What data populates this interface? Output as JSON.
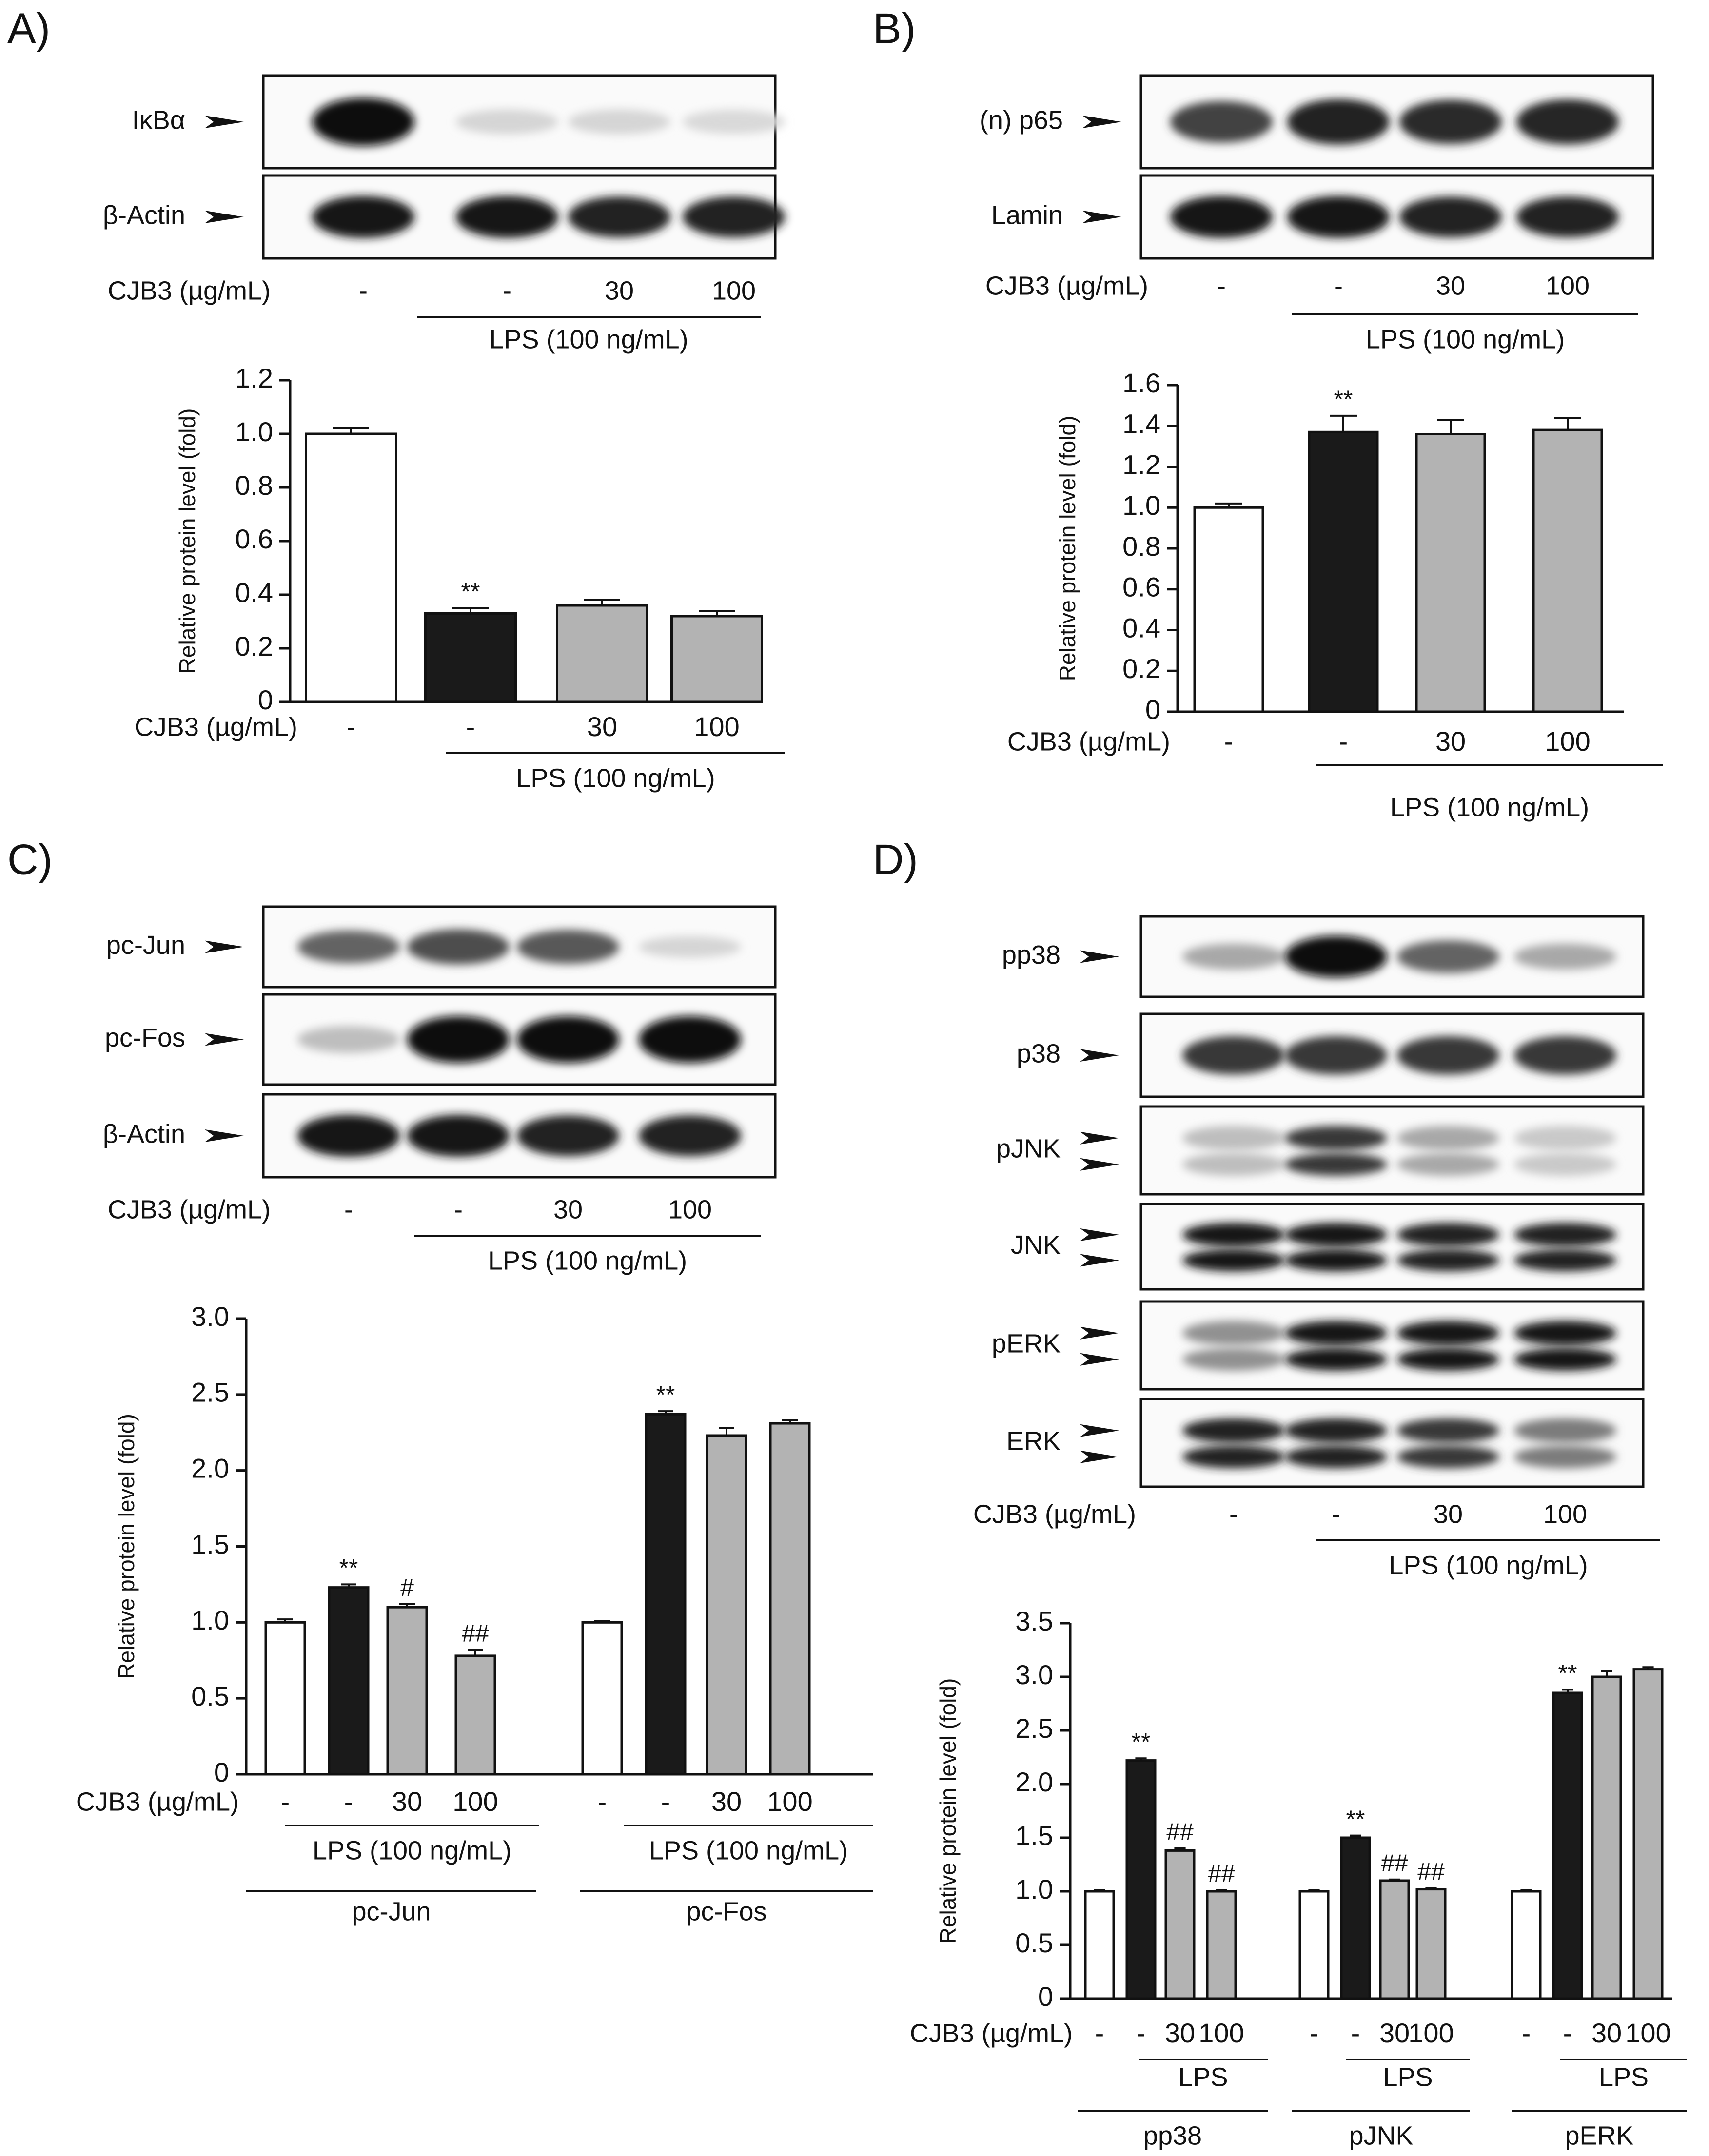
{
  "panels": {
    "A": {
      "letter": "A)",
      "blot": {
        "rows": [
          {
            "label": "IκBα",
            "band_intensity": [
              1.0,
              0.1,
              0.1,
              0.08
            ]
          },
          {
            "label": "β-Actin",
            "band_intensity": [
              0.95,
              0.95,
              0.9,
              0.9
            ]
          }
        ],
        "treatment_label": "CJB3 (µg/mL)",
        "doses": [
          "-",
          "-",
          "30",
          "100"
        ],
        "lps_label": "LPS (100 ng/mL)"
      }
    },
    "B": {
      "letter": "B)",
      "blot": {
        "rows": [
          {
            "label": "(n) p65",
            "band_intensity": [
              0.75,
              0.9,
              0.85,
              0.88
            ]
          },
          {
            "label": "Lamin",
            "band_intensity": [
              0.95,
              0.95,
              0.9,
              0.9
            ]
          }
        ],
        "treatment_label": "CJB3 (µg/mL)",
        "doses": [
          "-",
          "-",
          "30",
          "100"
        ],
        "lps_label": "LPS (100 ng/mL)"
      }
    },
    "C": {
      "letter": "C)",
      "blot": {
        "rows": [
          {
            "label": "pc-Jun",
            "band_intensity": [
              0.6,
              0.7,
              0.65,
              0.1
            ]
          },
          {
            "label": "pc-Fos",
            "band_intensity": [
              0.2,
              1.0,
              1.0,
              1.0
            ]
          },
          {
            "label": "β-Actin",
            "band_intensity": [
              0.95,
              0.95,
              0.9,
              0.9
            ]
          }
        ],
        "treatment_label": "CJB3 (µg/mL)",
        "doses": [
          "-",
          "-",
          "30",
          "100"
        ],
        "lps_label": "LPS (100 ng/mL)"
      }
    },
    "D": {
      "letter": "D)",
      "blot": {
        "rows": [
          {
            "label": "pp38",
            "band_intensity": [
              0.3,
              1.0,
              0.6,
              0.3
            ],
            "arrows": 1
          },
          {
            "label": "p38",
            "band_intensity": [
              0.8,
              0.8,
              0.8,
              0.8
            ],
            "arrows": 1
          },
          {
            "label": "pJNK",
            "band_intensity": [
              0.2,
              0.8,
              0.3,
              0.15
            ],
            "arrows": 2
          },
          {
            "label": "JNK",
            "band_intensity": [
              0.95,
              0.95,
              0.9,
              0.9
            ],
            "arrows": 2
          },
          {
            "label": "pERK",
            "band_intensity": [
              0.4,
              0.95,
              0.95,
              0.95
            ],
            "arrows": 2
          },
          {
            "label": "ERK",
            "band_intensity": [
              0.9,
              0.9,
              0.8,
              0.5
            ],
            "arrows": 2
          }
        ],
        "treatment_label": "CJB3 (µg/mL)",
        "doses": [
          "-",
          "-",
          "30",
          "100"
        ],
        "lps_label": "LPS (100 ng/mL)"
      }
    }
  },
  "chart_data": [
    {
      "panel": "A",
      "type": "bar",
      "ylabel": "Relative protein level (fold)",
      "ylim": [
        0,
        1.2
      ],
      "yticks": [
        "0",
        "0.2",
        "0.4",
        "0.6",
        "0.8",
        "1.0",
        "1.2"
      ],
      "groups": [
        {
          "name": "",
          "categories": [
            "-",
            "-",
            "30",
            "100"
          ],
          "values": [
            1.0,
            0.33,
            0.36,
            0.32
          ],
          "errors": [
            0.02,
            0.02,
            0.02,
            0.02
          ],
          "annotations": [
            "",
            "**",
            "",
            ""
          ],
          "lps_label": "LPS (100 ng/mL)"
        }
      ],
      "treatment_label": "CJB3 (µg/mL)",
      "colors": {
        "control": "#ffffff",
        "lps": "#1a1a1a",
        "treated": "#b3b3b3"
      }
    },
    {
      "panel": "B",
      "type": "bar",
      "ylabel": "Relative protein level (fold)",
      "ylim": [
        0,
        1.6
      ],
      "yticks": [
        "0",
        "0.2",
        "0.4",
        "0.6",
        "0.8",
        "1.0",
        "1.2",
        "1.4",
        "1.6"
      ],
      "groups": [
        {
          "name": "",
          "categories": [
            "-",
            "-",
            "30",
            "100"
          ],
          "values": [
            1.0,
            1.37,
            1.36,
            1.38
          ],
          "errors": [
            0.02,
            0.08,
            0.07,
            0.06
          ],
          "annotations": [
            "",
            "**",
            "",
            ""
          ],
          "lps_label": "LPS (100 ng/mL)"
        }
      ],
      "treatment_label": "CJB3 (µg/mL)",
      "colors": {
        "control": "#ffffff",
        "lps": "#1a1a1a",
        "treated": "#b3b3b3"
      }
    },
    {
      "panel": "C",
      "type": "bar",
      "ylabel": "Relative protein level (fold)",
      "ylim": [
        0,
        3.0
      ],
      "yticks": [
        "0",
        "0.5",
        "1.0",
        "1.5",
        "2.0",
        "2.5",
        "3.0"
      ],
      "groups": [
        {
          "name": "pc-Jun",
          "categories": [
            "-",
            "-",
            "30",
            "100"
          ],
          "values": [
            1.0,
            1.23,
            1.1,
            0.78
          ],
          "errors": [
            0.02,
            0.02,
            0.02,
            0.04
          ],
          "annotations": [
            "",
            "**",
            "#",
            "##"
          ],
          "lps_label": "LPS (100 ng/mL)"
        },
        {
          "name": "pc-Fos",
          "categories": [
            "-",
            "-",
            "30",
            "100"
          ],
          "values": [
            1.0,
            2.37,
            2.23,
            2.31
          ],
          "errors": [
            0.01,
            0.02,
            0.05,
            0.02
          ],
          "annotations": [
            "",
            "**",
            "",
            ""
          ],
          "lps_label": "LPS (100 ng/mL)"
        }
      ],
      "treatment_label": "CJB3 (µg/mL)",
      "colors": {
        "control": "#ffffff",
        "lps": "#1a1a1a",
        "treated": "#b3b3b3"
      }
    },
    {
      "panel": "D",
      "type": "bar",
      "ylabel": "Relative protein level (fold)",
      "ylim": [
        0,
        3.5
      ],
      "yticks": [
        "0",
        "0.5",
        "1.0",
        "1.5",
        "2.0",
        "2.5",
        "3.0",
        "3.5"
      ],
      "groups": [
        {
          "name": "pp38",
          "categories": [
            "-",
            "-",
            "30",
            "100"
          ],
          "values": [
            1.0,
            2.22,
            1.38,
            1.0
          ],
          "errors": [
            0.01,
            0.02,
            0.02,
            0.01
          ],
          "annotations": [
            "",
            "**",
            "##",
            "##"
          ],
          "lps_label": "LPS"
        },
        {
          "name": "pJNK",
          "categories": [
            "-",
            "-",
            "30",
            "100"
          ],
          "values": [
            1.0,
            1.5,
            1.1,
            1.02
          ],
          "errors": [
            0.01,
            0.02,
            0.01,
            0.01
          ],
          "annotations": [
            "",
            "**",
            "##",
            "##"
          ],
          "lps_label": "LPS"
        },
        {
          "name": "pERK",
          "categories": [
            "-",
            "-",
            "30",
            "100"
          ],
          "values": [
            1.0,
            2.85,
            3.0,
            3.07
          ],
          "errors": [
            0.01,
            0.03,
            0.05,
            0.02
          ],
          "annotations": [
            "",
            "**",
            "",
            ""
          ],
          "lps_label": "LPS"
        }
      ],
      "treatment_label": "CJB3 (µg/mL)",
      "colors": {
        "control": "#ffffff",
        "lps": "#1a1a1a",
        "treated": "#b3b3b3"
      }
    }
  ]
}
